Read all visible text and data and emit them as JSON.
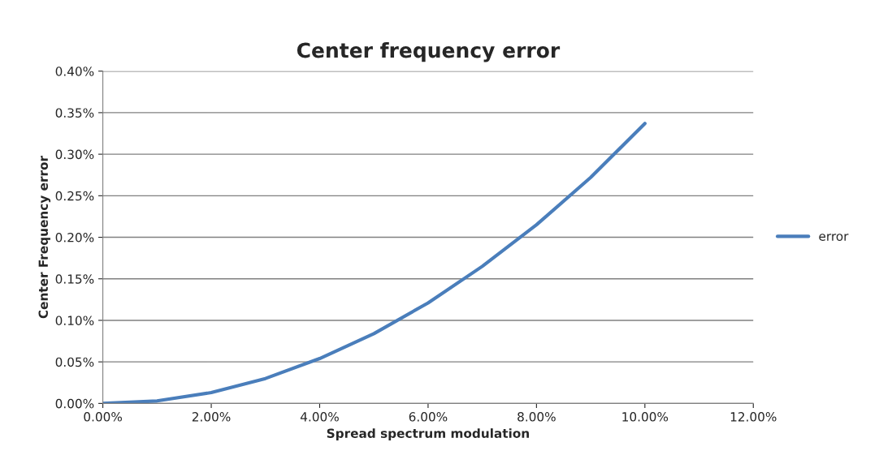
{
  "chart_data": {
    "type": "line",
    "title": "Center frequency error",
    "xlabel": "Spread spectrum modulation",
    "ylabel": "Center Frequency error",
    "x": [
      0,
      1,
      2,
      3,
      4,
      5,
      6,
      7,
      8,
      9,
      10
    ],
    "series": [
      {
        "name": "error",
        "color": "#4a7ebb",
        "values": [
          0.0,
          0.003,
          0.013,
          0.03,
          0.054,
          0.084,
          0.121,
          0.165,
          0.215,
          0.272,
          0.337
        ]
      }
    ],
    "xlim": [
      0,
      12
    ],
    "xticks": [
      {
        "value": 0,
        "label": "0.00%"
      },
      {
        "value": 2,
        "label": "2.00%"
      },
      {
        "value": 4,
        "label": "4.00%"
      },
      {
        "value": 6,
        "label": "6.00%"
      },
      {
        "value": 8,
        "label": "8.00%"
      },
      {
        "value": 10,
        "label": "10.00%"
      },
      {
        "value": 12,
        "label": "12.00%"
      }
    ],
    "ylim": [
      0,
      0.4
    ],
    "yticks": [
      {
        "value": 0,
        "label": "0.00%"
      },
      {
        "value": 0.05,
        "label": "0.05%"
      },
      {
        "value": 0.1,
        "label": "0.10%"
      },
      {
        "value": 0.15,
        "label": "0.15%"
      },
      {
        "value": 0.2,
        "label": "0.20%"
      },
      {
        "value": 0.25,
        "label": "0.25%"
      },
      {
        "value": 0.3,
        "label": "0.30%"
      },
      {
        "value": 0.35,
        "label": "0.35%"
      },
      {
        "value": 0.4,
        "label": "0.40%"
      }
    ],
    "grid": "y",
    "legend": "right",
    "marker": "none",
    "line_style": "solid"
  }
}
